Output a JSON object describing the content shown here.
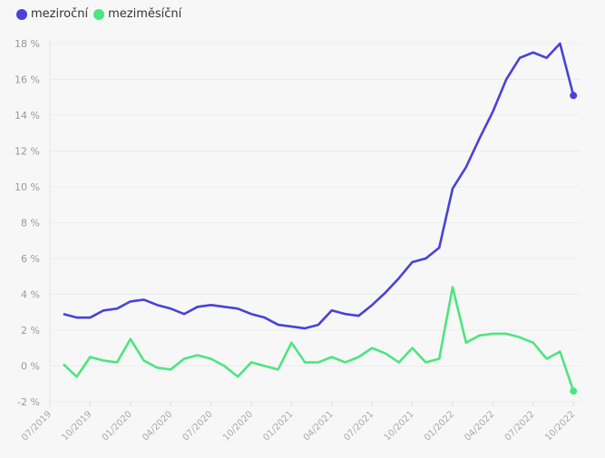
{
  "chart_data": {
    "type": "line",
    "title": "",
    "xlabel": "",
    "ylabel": "",
    "ylim": [
      -2,
      18
    ],
    "y_ticks": [
      "-2 %",
      "0 %",
      "2 %",
      "4 %",
      "6 %",
      "8 %",
      "10 %",
      "12 %",
      "14 %",
      "16 %",
      "18 %"
    ],
    "y_tick_values": [
      -2,
      0,
      2,
      4,
      6,
      8,
      10,
      12,
      14,
      16,
      18
    ],
    "x_ticks": [
      "07/2019",
      "10/2019",
      "01/2020",
      "04/2020",
      "07/2020",
      "10/2020",
      "01/2021",
      "04/2021",
      "07/2021",
      "10/2021",
      "01/2022",
      "04/2022",
      "07/2022",
      "10/2022"
    ],
    "x": [
      "08/2019",
      "09/2019",
      "10/2019",
      "11/2019",
      "12/2019",
      "01/2020",
      "02/2020",
      "03/2020",
      "04/2020",
      "05/2020",
      "06/2020",
      "07/2020",
      "08/2020",
      "09/2020",
      "10/2020",
      "11/2020",
      "12/2020",
      "01/2021",
      "02/2021",
      "03/2021",
      "04/2021",
      "05/2021",
      "06/2021",
      "07/2021",
      "08/2021",
      "09/2021",
      "10/2021",
      "11/2021",
      "12/2021",
      "01/2022",
      "02/2022",
      "03/2022",
      "04/2022",
      "05/2022",
      "06/2022",
      "07/2022",
      "08/2022",
      "09/2022",
      "10/2022"
    ],
    "grid": true,
    "legend_position": "top-left",
    "series": [
      {
        "name": "meziroční",
        "color": "#4a41d9",
        "values": [
          2.9,
          2.7,
          2.7,
          3.1,
          3.2,
          3.6,
          3.7,
          3.4,
          3.2,
          2.9,
          3.3,
          3.4,
          3.3,
          3.2,
          2.9,
          2.7,
          2.3,
          2.2,
          2.1,
          2.3,
          3.1,
          2.9,
          2.8,
          3.4,
          4.1,
          4.9,
          5.8,
          6.0,
          6.6,
          9.9,
          11.1,
          12.7,
          14.2,
          16.0,
          17.2,
          17.5,
          17.2,
          18.0,
          15.1
        ]
      },
      {
        "name": "meziměsíční",
        "color": "#4de57f",
        "values": [
          0.1,
          -0.6,
          0.5,
          0.3,
          0.2,
          1.5,
          0.3,
          -0.1,
          -0.2,
          0.4,
          0.6,
          0.4,
          0.0,
          -0.6,
          0.2,
          0.0,
          -0.2,
          1.3,
          0.2,
          0.2,
          0.5,
          0.2,
          0.5,
          1.0,
          0.7,
          0.2,
          1.0,
          0.2,
          0.4,
          4.4,
          1.3,
          1.7,
          1.8,
          1.8,
          1.6,
          1.3,
          0.4,
          0.8,
          -1.4
        ]
      }
    ]
  }
}
